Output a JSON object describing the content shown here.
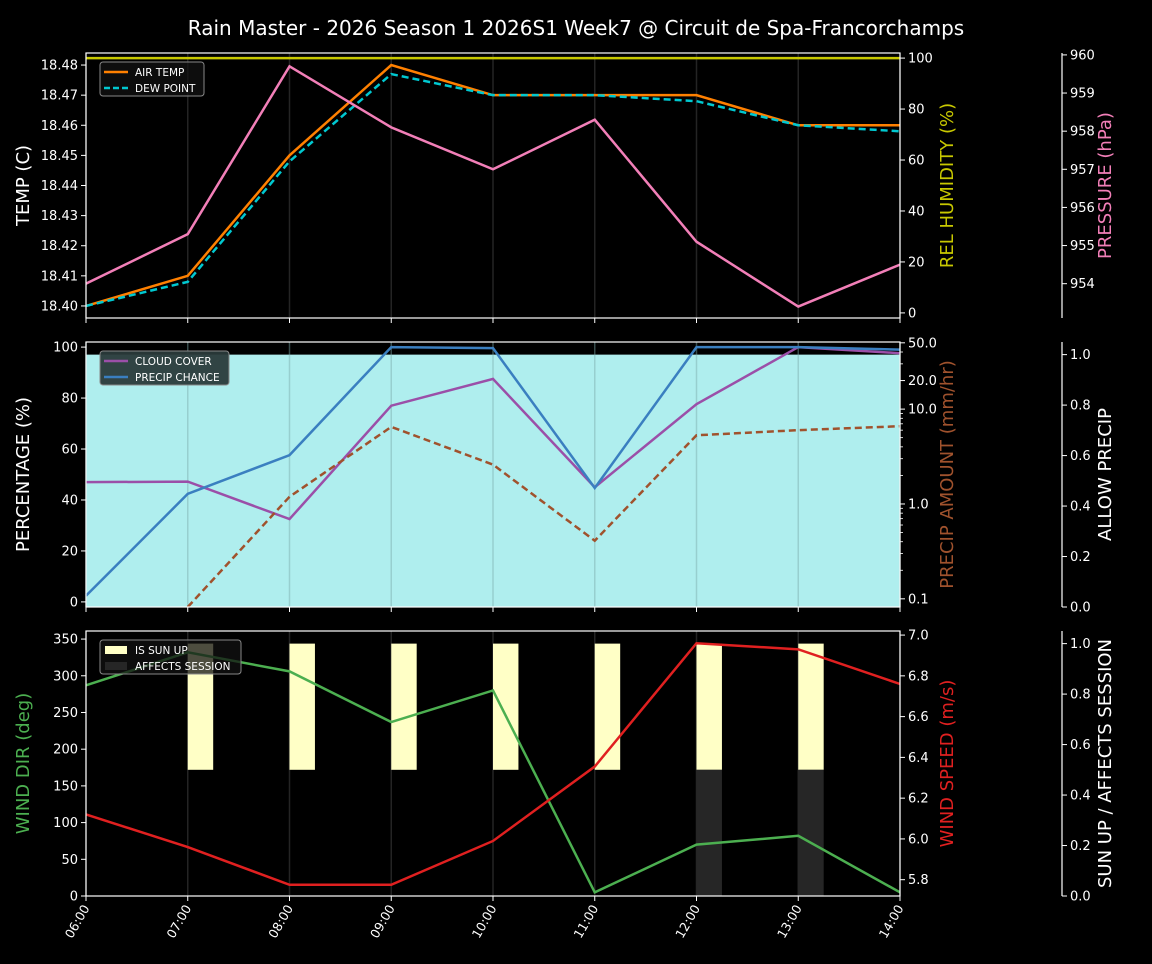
{
  "title": "Rain Master - 2026 Season 1 2026S1 Week7 @ Circuit de Spa-Francorchamps",
  "x_ticks": [
    "06:00",
    "07:00",
    "08:00",
    "09:00",
    "10:00",
    "11:00",
    "12:00",
    "13:00",
    "14:00"
  ],
  "chart_data": [
    {
      "type": "line",
      "grid": "vertical",
      "legend": "top-left",
      "axes": {
        "left": {
          "label": "TEMP (C)",
          "color": "#ffffff",
          "scale": "linear",
          "ylim": [
            18.396,
            18.484
          ],
          "ticks": [
            "18.40",
            "18.41",
            "18.42",
            "18.43",
            "18.44",
            "18.45",
            "18.46",
            "18.47",
            "18.48"
          ]
        },
        "right": {
          "label": "REL HUMIDITY (%)",
          "color": "#c8c800",
          "scale": "linear",
          "ylim": [
            -2,
            102
          ],
          "ticks": [
            "0",
            "20",
            "40",
            "60",
            "80",
            "100"
          ]
        },
        "far_right": {
          "label": "PRESSURE (hPa)",
          "color": "#f27fb8",
          "scale": "linear",
          "ylim": [
            953.1,
            960.05
          ],
          "ticks": [
            "954",
            "955",
            "956",
            "957",
            "958",
            "959",
            "960"
          ]
        }
      },
      "series": [
        {
          "name": "AIR TEMP",
          "axis": "left",
          "color": "#ff8000",
          "dash": false,
          "legend": true,
          "values": [
            18.4,
            18.41,
            18.45,
            18.48,
            18.47,
            18.47,
            18.47,
            18.46,
            18.46
          ]
        },
        {
          "name": "DEW POINT",
          "axis": "left",
          "color": "#00c8d0",
          "dash": true,
          "legend": true,
          "values": [
            18.4,
            18.408,
            18.448,
            18.477,
            18.47,
            18.47,
            18.468,
            18.46,
            18.458
          ]
        },
        {
          "axis": "right",
          "color": "#c8c800",
          "dash": false,
          "legend": false,
          "values": [
            100,
            100,
            100,
            100,
            100,
            100,
            100,
            100,
            100
          ]
        },
        {
          "axis": "far_right",
          "color": "#f27fb8",
          "dash": false,
          "legend": false,
          "values": [
            954.0,
            955.3,
            959.7,
            958.1,
            957.0,
            958.3,
            955.1,
            953.4,
            954.5
          ]
        }
      ]
    },
    {
      "type": "line",
      "grid": "vertical",
      "legend": "top-left",
      "axes": {
        "left": {
          "label": "PERCENTAGE (%)",
          "color": "#ffffff",
          "scale": "linear",
          "ylim": [
            -2,
            102
          ],
          "ticks": [
            "0",
            "20",
            "40",
            "60",
            "80",
            "100"
          ]
        },
        "right": {
          "label": "PRECIP AMOUNT (mm/hr)",
          "color": "#a0522d",
          "scale": "log",
          "ylim": [
            0.082,
            51
          ],
          "ticks": [
            "0.1",
            "1.0",
            "10.0",
            "20.0",
            "50.0"
          ]
        },
        "far_right": {
          "label": "ALLOW PRECIP",
          "color": "#ffffff",
          "scale": "linear",
          "ylim": [
            0,
            1.05
          ],
          "ticks": [
            "0.0",
            "0.2",
            "0.4",
            "0.6",
            "0.8",
            "1.0"
          ]
        }
      },
      "series": [
        {
          "axis": "far_right",
          "kind": "fill",
          "color": "#afeeee",
          "legend": false,
          "values": [
            1,
            1,
            1,
            1,
            1,
            1,
            1,
            1,
            1
          ]
        },
        {
          "name": "CLOUD COVER",
          "axis": "left",
          "color": "#9b4fa8",
          "dash": false,
          "legend": true,
          "values": [
            47,
            47.2,
            32.5,
            77,
            87.5,
            45,
            77.6,
            100,
            97.6
          ]
        },
        {
          "name": "PRECIP CHANCE",
          "axis": "left",
          "color": "#3a7fc0",
          "dash": false,
          "legend": true,
          "values": [
            2.4,
            42.4,
            57.6,
            100,
            99.6,
            44.7,
            100,
            100,
            99
          ]
        },
        {
          "axis": "right",
          "color": "#a0522d",
          "dash": true,
          "legend": false,
          "values": [
            null,
            0.08,
            1.19,
            6.5,
            2.6,
            0.41,
            5.3,
            6.0,
            6.6
          ]
        }
      ]
    },
    {
      "type": "line",
      "grid": "vertical",
      "legend": "top-left",
      "axes": {
        "left": {
          "label": "WIND DIR (deg)",
          "color": "#4caf50",
          "scale": "linear",
          "ylim": [
            0,
            361
          ],
          "ticks": [
            "0",
            "50",
            "100",
            "150",
            "200",
            "250",
            "300",
            "350"
          ]
        },
        "right": {
          "label": "WIND SPEED (m/s)",
          "color": "#e02020",
          "scale": "linear",
          "ylim": [
            5.72,
            7.02
          ],
          "ticks": [
            "5.8",
            "6.0",
            "6.2",
            "6.4",
            "6.6",
            "6.8",
            "7.0"
          ]
        },
        "far_right": {
          "label": "SUN UP / AFFECTS SESSION",
          "color": "#ffffff",
          "scale": "linear",
          "ylim": [
            0,
            1.05
          ],
          "ticks": [
            "0.0",
            "0.2",
            "0.4",
            "0.6",
            "0.8",
            "1.0"
          ]
        }
      },
      "series": [
        {
          "name": "IS SUN UP",
          "axis": "far_right",
          "kind": "bar",
          "half": "upper",
          "color": "#ffffc6",
          "legend": true,
          "values": [
            0,
            1,
            1,
            1,
            1,
            1,
            1,
            1,
            0
          ]
        },
        {
          "name": "AFFECTS SESSION",
          "axis": "far_right",
          "kind": "bar",
          "half": "lower",
          "color": "#262626",
          "legend": true,
          "values": [
            0,
            0,
            0,
            0,
            0,
            0,
            1,
            1,
            0
          ]
        },
        {
          "axis": "left",
          "color": "#4caf50",
          "dash": false,
          "legend": false,
          "values": [
            287,
            332,
            306,
            237,
            280,
            5,
            70,
            82,
            5
          ]
        },
        {
          "axis": "right",
          "color": "#e02020",
          "dash": false,
          "legend": false,
          "values": [
            6.12,
            5.96,
            5.775,
            5.775,
            5.99,
            6.355,
            6.96,
            6.93,
            6.76
          ]
        }
      ]
    }
  ]
}
